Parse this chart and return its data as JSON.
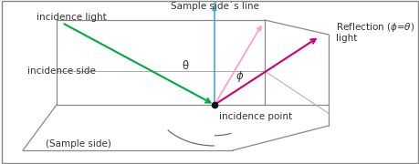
{
  "bg_color": "#ffffff",
  "border_color": "#888888",
  "green_color": "#00aa44",
  "pink_color": "#ff99cc",
  "magenta_color": "#cc0077",
  "cyan_color": "#44aacc",
  "arc_color": "#666666",
  "box_color": "#888888",
  "text_color": "#333333",
  "incidence_point": [
    0.42,
    0.42
  ],
  "theta_label": "θ",
  "phi_label": "ϕ",
  "label_incidence_light": "incidence light",
  "label_sample_line": "Sample side`s line",
  "label_incidence_side": "incidence side",
  "label_sample_side": "(Sample side)",
  "label_incidence_point": "incidence point",
  "label_reflection": "Reflection (ϕ=θ)\nlight"
}
